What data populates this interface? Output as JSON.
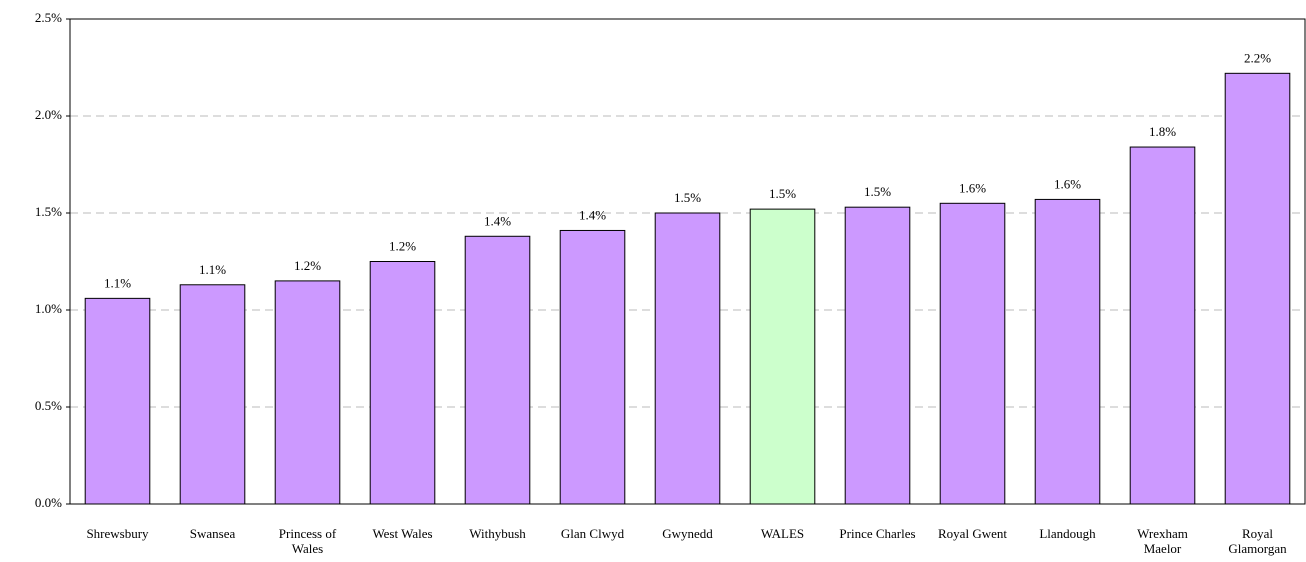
{
  "chart_data": {
    "type": "bar",
    "categories": [
      "Shrewsbury",
      "Swansea",
      "Princess of\nWales",
      "West Wales",
      "Withybush",
      "Glan Clwyd",
      "Gwynedd",
      "WALES",
      "Prince Charles",
      "Royal Gwent",
      "Llandough",
      "Wrexham\nMaelor",
      "Royal\nGlamorgan"
    ],
    "values": [
      1.06,
      1.13,
      1.15,
      1.25,
      1.38,
      1.41,
      1.5,
      1.52,
      1.53,
      1.55,
      1.57,
      1.84,
      2.22
    ],
    "value_labels": [
      "1.1%",
      "1.1%",
      "1.2%",
      "1.2%",
      "1.4%",
      "1.4%",
      "1.5%",
      "1.5%",
      "1.5%",
      "1.6%",
      "1.6%",
      "1.8%",
      "2.2%"
    ],
    "colors": [
      "#cc99ff",
      "#cc99ff",
      "#cc99ff",
      "#cc99ff",
      "#cc99ff",
      "#cc99ff",
      "#cc99ff",
      "#ccffcc",
      "#cc99ff",
      "#cc99ff",
      "#cc99ff",
      "#cc99ff",
      "#cc99ff"
    ],
    "ylim": [
      0,
      2.5
    ],
    "yticks": [
      {
        "value": 0,
        "label": "0.0%"
      },
      {
        "value": 0.5,
        "label": "0.5%"
      },
      {
        "value": 1,
        "label": "1.0%"
      },
      {
        "value": 1.5,
        "label": "1.5%"
      },
      {
        "value": 2,
        "label": "2.0%"
      },
      {
        "value": 2.5,
        "label": "2.5%"
      }
    ],
    "grid": true
  }
}
